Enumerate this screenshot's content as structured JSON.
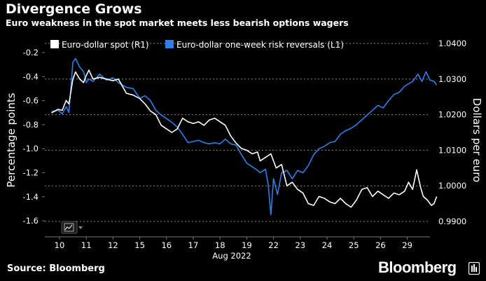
{
  "header": {
    "title": "Divergence Grows",
    "subtitle": "Euro weakness in the spot market meets less bearish options wagers"
  },
  "footer": {
    "source": "Source: Bloomberg",
    "brand": "Bloomberg"
  },
  "chart_data": {
    "type": "line",
    "title": "Divergence Grows",
    "subtitle": "Euro weakness in the spot market meets less bearish options wagers",
    "xlabel": "Aug 2022",
    "ylabel_left": "Percentage points",
    "ylabel_right": "Dollars per euro",
    "x_ticks": [
      "10",
      "11",
      "12",
      "15",
      "16",
      "17",
      "18",
      "19",
      "22",
      "23",
      "24",
      "25",
      "26",
      "29"
    ],
    "left_axis": {
      "ticks": [
        "-0.2",
        "-0.4",
        "-0.6",
        "-0.8",
        "-1.0",
        "-1.2",
        "-1.4",
        "-1.6"
      ],
      "ylim": [
        -1.6,
        -0.2
      ]
    },
    "right_axis": {
      "ticks": [
        "1.0400",
        "1.0300",
        "1.0200",
        "1.0100",
        "1.0000",
        "0.9900"
      ],
      "ylim": [
        0.99,
        1.04
      ]
    },
    "gridlines": true,
    "legend_position": "top",
    "colors": {
      "spot": "#ffffff",
      "risk_reversals": "#2f7fe4",
      "grid": "#8a8a8a"
    },
    "series": [
      {
        "name": "Euro-dollar spot (R1)",
        "axis": "right",
        "color": "#ffffff",
        "points": [
          [
            -0.3,
            1.0205
          ],
          [
            -0.05,
            1.0215
          ],
          [
            0.1,
            1.0212
          ],
          [
            0.25,
            1.024
          ],
          [
            0.35,
            1.023
          ],
          [
            0.5,
            1.03
          ],
          [
            0.6,
            1.032
          ],
          [
            0.75,
            1.03
          ],
          [
            0.9,
            1.029
          ],
          [
            1.0,
            1.031
          ],
          [
            1.1,
            1.0325
          ],
          [
            1.25,
            1.03
          ],
          [
            1.5,
            1.0305
          ],
          [
            1.75,
            1.03
          ],
          [
            2.0,
            1.0295
          ],
          [
            2.2,
            1.03
          ],
          [
            2.5,
            1.026
          ],
          [
            2.75,
            1.0255
          ],
          [
            3.0,
            1.0245
          ],
          [
            3.2,
            1.023
          ],
          [
            3.4,
            1.021
          ],
          [
            3.6,
            1.02
          ],
          [
            3.8,
            1.017
          ],
          [
            4.0,
            1.016
          ],
          [
            4.2,
            1.015
          ],
          [
            4.4,
            1.016
          ],
          [
            4.6,
            1.019
          ],
          [
            4.8,
            1.018
          ],
          [
            5.0,
            1.0175
          ],
          [
            5.2,
            1.018
          ],
          [
            5.4,
            1.017
          ],
          [
            5.6,
            1.0185
          ],
          [
            5.8,
            1.019
          ],
          [
            6.0,
            1.018
          ],
          [
            6.2,
            1.017
          ],
          [
            6.4,
            1.014
          ],
          [
            6.6,
            1.012
          ],
          [
            6.8,
            1.0105
          ],
          [
            7.0,
            1.01
          ],
          [
            7.2,
            1.009
          ],
          [
            7.4,
            1.0095
          ],
          [
            7.5,
            1.007
          ],
          [
            7.7,
            1.008
          ],
          [
            7.9,
            1.009
          ],
          [
            8.1,
            1.005
          ],
          [
            8.3,
            1.006
          ],
          [
            8.5,
            1.0
          ],
          [
            8.7,
            1.001
          ],
          [
            8.9,
            0.999
          ],
          [
            9.1,
            0.998
          ],
          [
            9.3,
            0.995
          ],
          [
            9.5,
            0.9945
          ],
          [
            9.7,
            0.997
          ],
          [
            9.9,
            0.9965
          ],
          [
            10.1,
            0.9955
          ],
          [
            10.3,
            0.995
          ],
          [
            10.5,
            0.9965
          ],
          [
            10.7,
            0.995
          ],
          [
            10.9,
            0.994
          ],
          [
            11.1,
            0.996
          ],
          [
            11.3,
            0.999
          ],
          [
            11.5,
            0.9995
          ],
          [
            11.7,
            0.997
          ],
          [
            11.9,
            0.9985
          ],
          [
            12.1,
            0.9975
          ],
          [
            12.3,
            0.9965
          ],
          [
            12.5,
            0.998
          ],
          [
            12.7,
            0.9975
          ],
          [
            12.9,
            0.9985
          ],
          [
            13.05,
            1.001
          ],
          [
            13.2,
            0.999
          ],
          [
            13.35,
            1.0045
          ],
          [
            13.5,
            0.9995
          ],
          [
            13.6,
            0.997
          ],
          [
            13.75,
            0.996
          ],
          [
            13.9,
            0.9945
          ],
          [
            14.0,
            0.995
          ],
          [
            14.1,
            0.997
          ]
        ]
      },
      {
        "name": "Euro-dollar one-week risk reversals (L1)",
        "axis": "left",
        "color": "#2f7fe4",
        "points": [
          [
            -0.3,
            -0.69
          ],
          [
            -0.05,
            -0.68
          ],
          [
            0.1,
            -0.71
          ],
          [
            0.25,
            -0.65
          ],
          [
            0.35,
            -0.7
          ],
          [
            0.5,
            -0.28
          ],
          [
            0.6,
            -0.25
          ],
          [
            0.75,
            -0.32
          ],
          [
            0.9,
            -0.36
          ],
          [
            1.0,
            -0.45
          ],
          [
            1.1,
            -0.42
          ],
          [
            1.25,
            -0.44
          ],
          [
            1.5,
            -0.38
          ],
          [
            1.75,
            -0.43
          ],
          [
            2.0,
            -0.41
          ],
          [
            2.2,
            -0.45
          ],
          [
            2.5,
            -0.49
          ],
          [
            2.75,
            -0.5
          ],
          [
            3.0,
            -0.58
          ],
          [
            3.2,
            -0.56
          ],
          [
            3.4,
            -0.6
          ],
          [
            3.6,
            -0.68
          ],
          [
            3.8,
            -0.72
          ],
          [
            4.0,
            -0.75
          ],
          [
            4.2,
            -0.78
          ],
          [
            4.4,
            -0.82
          ],
          [
            4.6,
            -0.88
          ],
          [
            4.8,
            -0.95
          ],
          [
            5.0,
            -0.94
          ],
          [
            5.2,
            -0.93
          ],
          [
            5.4,
            -0.95
          ],
          [
            5.6,
            -0.96
          ],
          [
            5.8,
            -0.95
          ],
          [
            6.0,
            -0.96
          ],
          [
            6.2,
            -0.92
          ],
          [
            6.4,
            -0.96
          ],
          [
            6.6,
            -0.97
          ],
          [
            6.8,
            -1.05
          ],
          [
            7.0,
            -1.12
          ],
          [
            7.2,
            -1.15
          ],
          [
            7.4,
            -1.18
          ],
          [
            7.5,
            -1.2
          ],
          [
            7.7,
            -1.17
          ],
          [
            7.8,
            -1.3
          ],
          [
            7.9,
            -1.55
          ],
          [
            8.0,
            -1.25
          ],
          [
            8.15,
            -1.38
          ],
          [
            8.3,
            -1.2
          ],
          [
            8.5,
            -1.18
          ],
          [
            8.7,
            -1.25
          ],
          [
            8.9,
            -1.18
          ],
          [
            9.1,
            -1.2
          ],
          [
            9.3,
            -1.14
          ],
          [
            9.5,
            -1.05
          ],
          [
            9.7,
            -1.0
          ],
          [
            9.9,
            -0.98
          ],
          [
            10.1,
            -0.95
          ],
          [
            10.3,
            -0.94
          ],
          [
            10.5,
            -0.88
          ],
          [
            10.7,
            -0.85
          ],
          [
            10.9,
            -0.83
          ],
          [
            11.1,
            -0.8
          ],
          [
            11.3,
            -0.76
          ],
          [
            11.5,
            -0.72
          ],
          [
            11.7,
            -0.68
          ],
          [
            11.9,
            -0.64
          ],
          [
            12.1,
            -0.66
          ],
          [
            12.3,
            -0.6
          ],
          [
            12.5,
            -0.55
          ],
          [
            12.7,
            -0.53
          ],
          [
            12.9,
            -0.48
          ],
          [
            13.05,
            -0.46
          ],
          [
            13.2,
            -0.44
          ],
          [
            13.4,
            -0.38
          ],
          [
            13.55,
            -0.44
          ],
          [
            13.7,
            -0.36
          ],
          [
            13.85,
            -0.43
          ],
          [
            14.0,
            -0.44
          ],
          [
            14.1,
            -0.47
          ]
        ]
      }
    ]
  }
}
